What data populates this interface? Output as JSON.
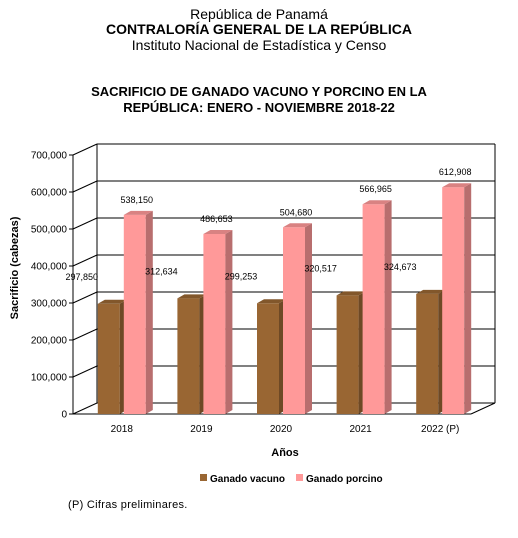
{
  "header": {
    "line1": "República de Panamá",
    "line2": "CONTRALORÍA GENERAL DE LA REPÚBLICA",
    "line3": "Instituto Nacional de Estadística y Censo"
  },
  "footnote": "(P) Cifras preliminares.",
  "colors": {
    "vacuno": "#996633",
    "porcino": "#FF9999"
  },
  "chart_data": {
    "type": "bar",
    "title_line1": "SACRIFICIO DE GANADO VACUNO Y PORCINO EN LA",
    "title_line2": "REPÚBLICA: ENERO - NOVIEMBRE 2018-22",
    "xlabel": "Años",
    "ylabel": "Sacrificio (cabezas)",
    "categories": [
      "2018",
      "2019",
      "2020",
      "2021",
      "2022 (P)"
    ],
    "series": [
      {
        "name": "Ganado vacuno",
        "values": [
          297850,
          312634,
          299253,
          320517,
          324673
        ],
        "labels": [
          "297,850",
          "312,634",
          "299,253",
          "320,517",
          "324,673"
        ]
      },
      {
        "name": "Ganado porcino",
        "values": [
          538150,
          486653,
          504680,
          566965,
          612908
        ],
        "labels": [
          "538,150",
          "486,653",
          "504,680",
          "566,965",
          "612,908"
        ]
      }
    ],
    "ylim": [
      0,
      700000
    ],
    "yticks": [
      0,
      100000,
      200000,
      300000,
      400000,
      500000,
      600000,
      700000
    ],
    "ytick_labels": [
      "0",
      "100,000",
      "200,000",
      "300,000",
      "400,000",
      "500,000",
      "600,000",
      "700,000"
    ],
    "grid": true,
    "legend": "bottom"
  }
}
